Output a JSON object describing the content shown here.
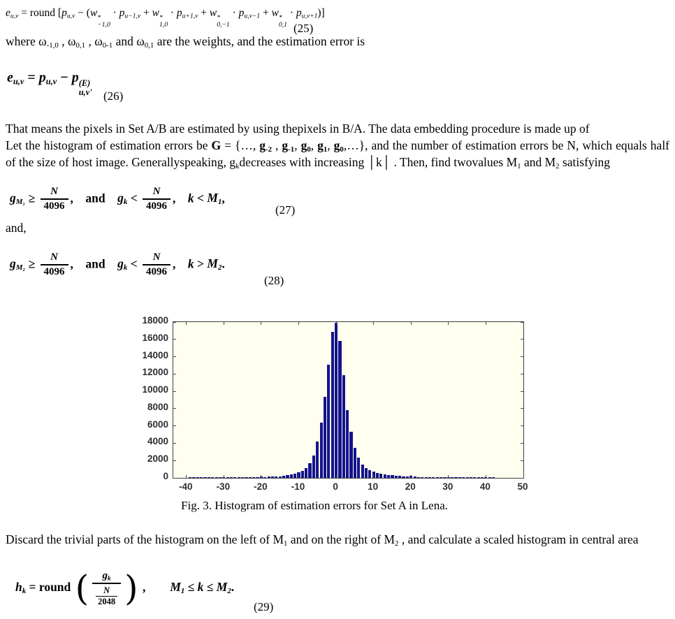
{
  "equations": {
    "eq25": {
      "number": "(25)",
      "tokens": [
        {
          "s": "i",
          "v": "e",
          "sub": "u,v"
        },
        {
          "s": "p",
          "v": " = round "
        },
        {
          "s": "p",
          "v": "["
        },
        {
          "s": "i",
          "v": "p",
          "sub": "u,v"
        },
        {
          "s": "p",
          "v": " − ("
        },
        {
          "s": "i",
          "v": "w",
          "sup": "*",
          "sub": "−1,0"
        },
        {
          "s": "p",
          "v": " · "
        },
        {
          "s": "i",
          "v": "p",
          "sub": "u−1,v"
        },
        {
          "s": "p",
          "v": " + "
        },
        {
          "s": "i",
          "v": "w",
          "sup": "*",
          "sub": "1,0"
        },
        {
          "s": "p",
          "v": " · "
        },
        {
          "s": "i",
          "v": "p",
          "sub": "u+1,v"
        },
        {
          "s": "p",
          "v": " + "
        },
        {
          "s": "i",
          "v": "w",
          "sup": "*",
          "sub": "0,−1"
        },
        {
          "s": "p",
          "v": " · "
        },
        {
          "s": "i",
          "v": "p",
          "sub": "u,v−1"
        },
        {
          "s": "p",
          "v": " + "
        },
        {
          "s": "i",
          "v": "w",
          "sup": "*",
          "sub": "0,1"
        },
        {
          "s": "p",
          "v": " · "
        },
        {
          "s": "i",
          "v": "p",
          "sub": "u,v+1"
        },
        {
          "s": "p",
          "v": ")]"
        }
      ]
    },
    "where_line": {
      "tokens": [
        {
          "s": "p",
          "v": "where "
        },
        {
          "s": "p",
          "v": "ω",
          "sub": "-1,0"
        },
        {
          "s": "p",
          "v": " , "
        },
        {
          "s": "p",
          "v": "ω",
          "sub": "0,1"
        },
        {
          "s": "p",
          "v": " , "
        },
        {
          "s": "p",
          "v": "ω",
          "sub": "0-1"
        },
        {
          "s": "p",
          "v": "  and "
        },
        {
          "s": "p",
          "v": "ω",
          "sub": "0,1"
        },
        {
          "s": "p",
          "v": " are the weights, and the estimation error is"
        }
      ]
    },
    "eq26": {
      "number": "(26)",
      "tokens": [
        {
          "s": "bi",
          "v": "e",
          "sub": "u,v"
        },
        {
          "s": "b",
          "v": " = "
        },
        {
          "s": "bi",
          "v": "p",
          "sub": "u,v"
        },
        {
          "s": "b",
          "v": " − "
        },
        {
          "s": "bi",
          "v": "p",
          "sup": "(E)",
          "sub": "u,v'"
        }
      ]
    },
    "eq27": {
      "number": "(27)",
      "tokens": [
        {
          "s": "bi",
          "v": "g",
          "sub": "M₁"
        },
        {
          "s": "b",
          "v": " ≥ "
        },
        {
          "frac": {
            "num": [
              {
                "s": "bi",
                "v": "N"
              }
            ],
            "den": [
              {
                "s": "b",
                "v": "4096"
              }
            ]
          }
        },
        {
          "s": "b",
          "v": ",  and  "
        },
        {
          "s": "bi",
          "v": "g",
          "sub": "k"
        },
        {
          "s": "b",
          "v": " < "
        },
        {
          "frac": {
            "num": [
              {
                "s": "bi",
                "v": "N"
              }
            ],
            "den": [
              {
                "s": "b",
                "v": "4096"
              }
            ]
          }
        },
        {
          "s": "b",
          "v": ",  "
        },
        {
          "s": "bi",
          "v": "k"
        },
        {
          "s": "b",
          "v": " < "
        },
        {
          "s": "bi",
          "v": "M",
          "sub": "1"
        },
        {
          "s": "b",
          "v": ","
        }
      ]
    },
    "and_line": {
      "text": "and,"
    },
    "eq28": {
      "number": "(28)",
      "tokens": [
        {
          "s": "bi",
          "v": "g",
          "sub": "M₂"
        },
        {
          "s": "b",
          "v": " ≥ "
        },
        {
          "frac": {
            "num": [
              {
                "s": "bi",
                "v": "N"
              }
            ],
            "den": [
              {
                "s": "b",
                "v": "4096"
              }
            ]
          }
        },
        {
          "s": "b",
          "v": ",  and  "
        },
        {
          "s": "bi",
          "v": "g",
          "sub": "k"
        },
        {
          "s": "b",
          "v": " < "
        },
        {
          "frac": {
            "num": [
              {
                "s": "bi",
                "v": "N"
              }
            ],
            "den": [
              {
                "s": "b",
                "v": "4096"
              }
            ]
          }
        },
        {
          "s": "b",
          "v": ",  "
        },
        {
          "s": "bi",
          "v": "k"
        },
        {
          "s": "b",
          "v": " > "
        },
        {
          "s": "bi",
          "v": "M",
          "sub": "2"
        },
        {
          "s": "b",
          "v": "."
        }
      ]
    },
    "eq29": {
      "number": "(29)",
      "tokens": [
        {
          "s": "bi",
          "v": "h",
          "sub": "k"
        },
        {
          "s": "b",
          "v": " = round "
        },
        {
          "big": "("
        },
        {
          "frac": {
            "num": [
              {
                "s": "bi",
                "v": "g",
                "sub": "k"
              }
            ],
            "den": [
              {
                "frac": {
                  "num": [
                    {
                      "s": "bi",
                      "v": "N"
                    }
                  ],
                  "den": [
                    {
                      "s": "b",
                      "v": "2048"
                    }
                  ]
                }
              }
            ]
          }
        },
        {
          "big": ")"
        },
        {
          "s": "b",
          "v": " ,    "
        },
        {
          "s": "bi",
          "v": "M",
          "sub": "1"
        },
        {
          "s": "b",
          "v": " ≤ "
        },
        {
          "s": "bi",
          "v": "k"
        },
        {
          "s": "b",
          "v": " ≤ "
        },
        {
          "s": "bi",
          "v": "M",
          "sub": "2"
        },
        {
          "s": "b",
          "v": "."
        }
      ]
    }
  },
  "paragraphs": {
    "intro": {
      "tokens": [
        {
          "s": "p",
          "v": "That means the pixels in Set A/B are estimated by using thepixels in B/A. The data embedding procedure is made up of"
        }
      ]
    },
    "histogram": {
      "tokens": [
        {
          "s": "p",
          "v": "Let the histogram of estimation errors be "
        },
        {
          "s": "b",
          "v": "G"
        },
        {
          "s": "p",
          "v": " = {…, "
        },
        {
          "s": "b",
          "v": "g",
          "sub": "-2"
        },
        {
          "s": "p",
          "v": " , "
        },
        {
          "s": "b",
          "v": "g",
          "sub": "-1"
        },
        {
          "s": "p",
          "v": ", "
        },
        {
          "s": "b",
          "v": "g",
          "sub": "0"
        },
        {
          "s": "p",
          "v": ", "
        },
        {
          "s": "b",
          "v": "g",
          "sub": "1"
        },
        {
          "s": "p",
          "v": ", "
        },
        {
          "s": "b",
          "v": "g",
          "sub": "0"
        },
        {
          "s": "p",
          "v": ",…}, and the number of estimation errors be N, which equals half of the size of host image. Generallyspeaking, "
        },
        {
          "s": "p",
          "v": "g",
          "sub": "k"
        },
        {
          "s": "p",
          "v": "decreases with increasing │k│ . Then, find twovalues "
        },
        {
          "s": "p",
          "v": "M",
          "sub": "1"
        },
        {
          "s": "p",
          "v": " and "
        },
        {
          "s": "p",
          "v": "M",
          "sub": "2"
        },
        {
          "s": "p",
          "v": " satisfying"
        }
      ]
    },
    "discard": {
      "tokens": [
        {
          "s": "p",
          "v": "Discard the trivial parts of the histogram on the left of "
        },
        {
          "s": "p",
          "v": "M",
          "sub": "1"
        },
        {
          "s": "p",
          "v": " and on the right of "
        },
        {
          "s": "p",
          "v": "M",
          "sub": "2"
        },
        {
          "s": "p",
          "v": " , and calculate a scaled histogram in central area"
        }
      ]
    }
  },
  "figure": {
    "caption": "Fig. 3. Histogram of estimation errors for Set A in Lena."
  },
  "chart_data": {
    "type": "bar",
    "title": "Histogram of estimation errors for Set A in Lena",
    "xlabel": "",
    "ylabel": "",
    "x_ticks": [
      -40,
      -30,
      -20,
      -10,
      0,
      10,
      20,
      30,
      40,
      50
    ],
    "y_ticks": [
      0,
      2000,
      4000,
      6000,
      8000,
      10000,
      12000,
      14000,
      16000,
      18000
    ],
    "xlim": [
      -43.5,
      50
    ],
    "ylim": [
      0,
      18000
    ],
    "grid": false,
    "bar_color": "#14148c",
    "plot_bg": "#fffff0",
    "x_start": -39,
    "values": [
      45,
      55,
      45,
      55,
      45,
      55,
      45,
      55,
      45,
      55,
      45,
      55,
      50,
      60,
      50,
      65,
      60,
      70,
      80,
      130,
      120,
      140,
      150,
      170,
      200,
      240,
      300,
      380,
      480,
      620,
      830,
      1150,
      1700,
      2620,
      4200,
      6380,
      9380,
      13050,
      16850,
      17900,
      15800,
      11880,
      7860,
      5350,
      3500,
      2320,
      1560,
      1120,
      860,
      700,
      560,
      470,
      400,
      340,
      290,
      250,
      220,
      190,
      160,
      210,
      130,
      110,
      100,
      90,
      80,
      75,
      70,
      65,
      60,
      60,
      55,
      60,
      50,
      60,
      50,
      55,
      45,
      55,
      45,
      55,
      45,
      50
    ]
  }
}
